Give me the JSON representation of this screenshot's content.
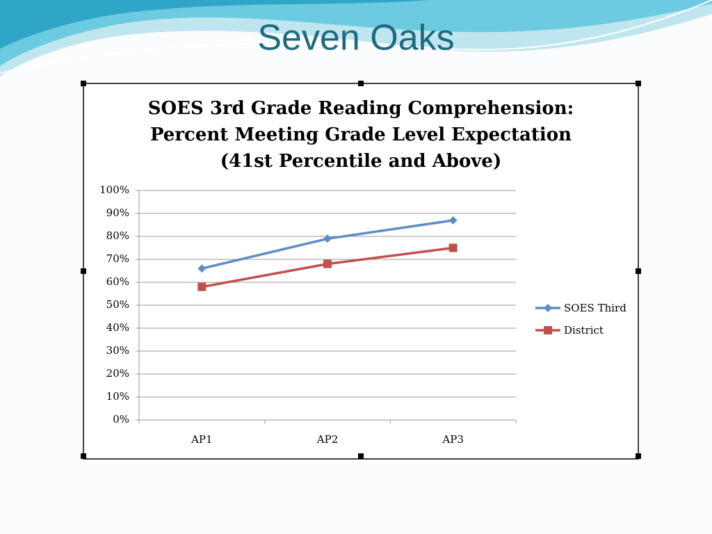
{
  "slide_title": "Seven Oaks",
  "chart_data": {
    "type": "line",
    "title": [
      "SOES 3rd Grade Reading Comprehension:",
      "Percent Meeting Grade Level Expectation",
      "(41st Percentile and Above)"
    ],
    "categories": [
      "AP1",
      "AP2",
      "AP3"
    ],
    "series": [
      {
        "name": "SOES Third",
        "color": "#5b8ec7",
        "marker": "diamond",
        "values": [
          66,
          79,
          87
        ]
      },
      {
        "name": "District",
        "color": "#c0504d",
        "marker": "square",
        "values": [
          58,
          68,
          75
        ]
      }
    ],
    "ylim": [
      0,
      100
    ],
    "yticks": [
      {
        "value": 0,
        "label": "0%"
      },
      {
        "value": 10,
        "label": "10%"
      },
      {
        "value": 20,
        "label": "20%"
      },
      {
        "value": 30,
        "label": "30%"
      },
      {
        "value": 40,
        "label": "40%"
      },
      {
        "value": 50,
        "label": "50%"
      },
      {
        "value": 60,
        "label": "60%"
      },
      {
        "value": 70,
        "label": "70%"
      },
      {
        "value": 80,
        "label": "80%"
      },
      {
        "value": 90,
        "label": "90%"
      },
      {
        "value": 100,
        "label": "100%"
      }
    ],
    "grid": true,
    "legend": "right"
  }
}
